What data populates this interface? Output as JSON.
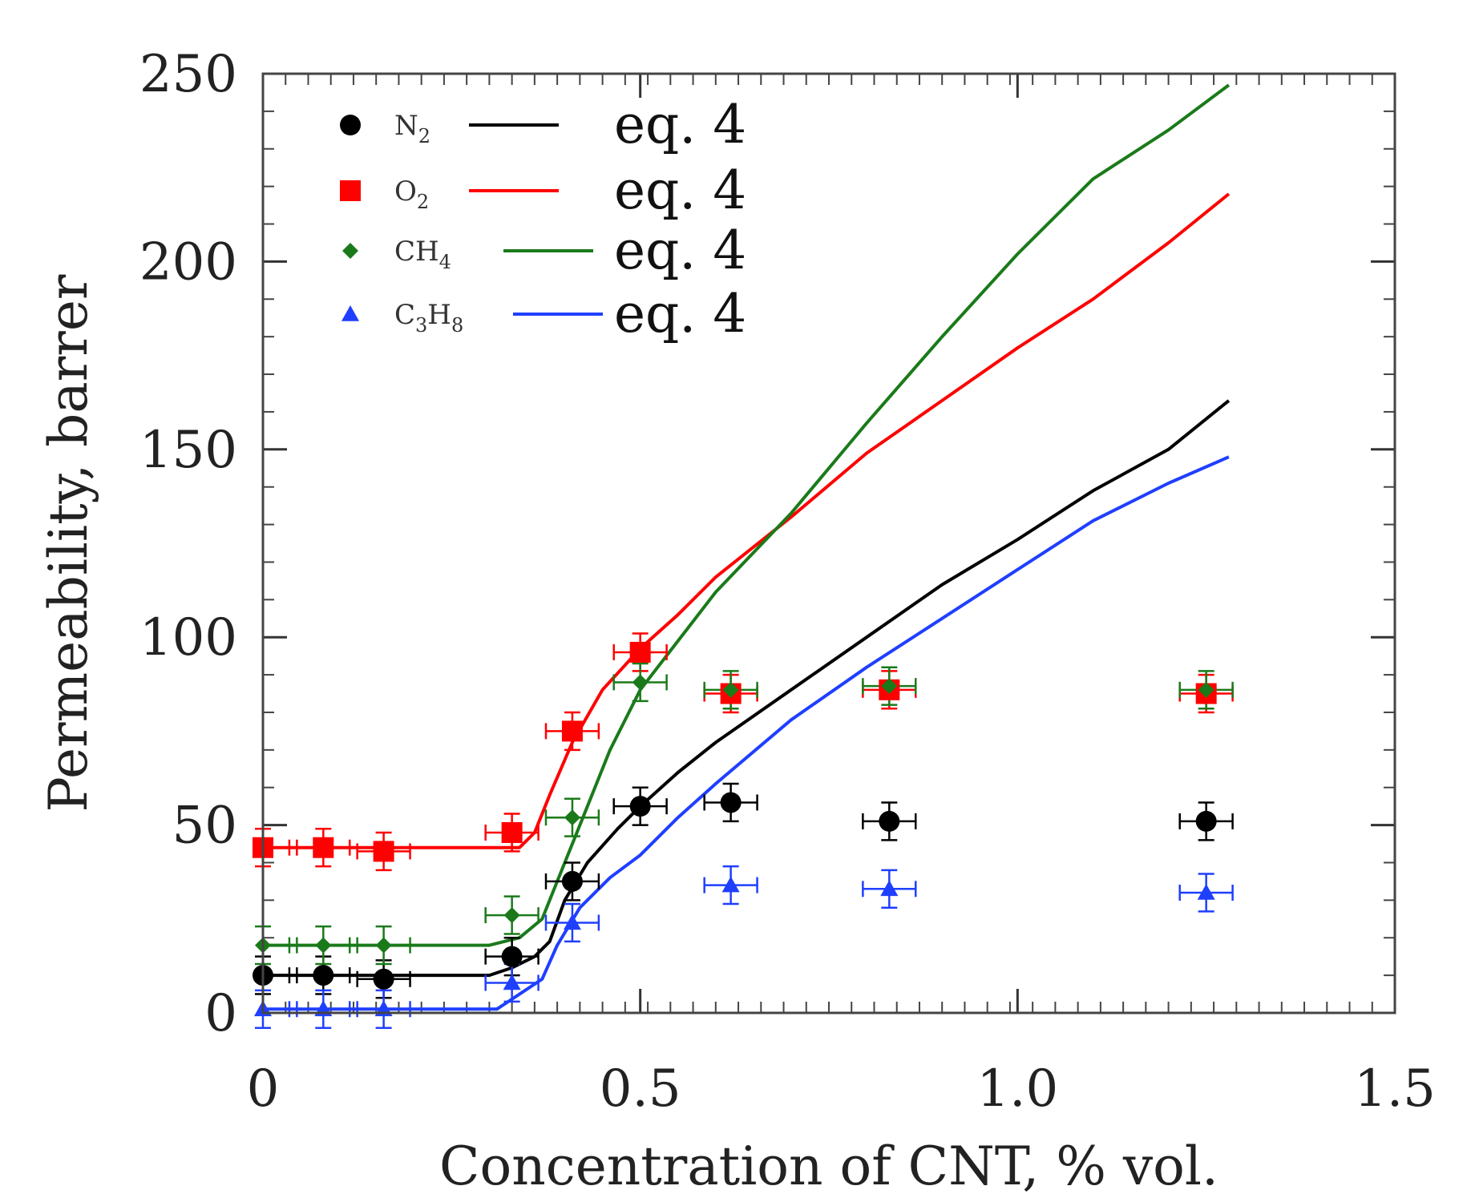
{
  "chart_data": {
    "type": "scatter",
    "title": "",
    "xlabel": "Concentration of CNT, % vol.",
    "ylabel": "Permeability, barrer",
    "xlim": [
      0,
      1.5
    ],
    "ylim": [
      0,
      250
    ],
    "xticks": [
      0,
      0.5,
      1.0,
      1.5
    ],
    "xtick_labels": [
      "0",
      "0.5",
      "1.0",
      "1.5"
    ],
    "yticks": [
      0,
      50,
      100,
      150,
      200,
      250
    ],
    "ytick_labels": [
      "0",
      "50",
      "100",
      "150",
      "200",
      "250"
    ],
    "grid": false,
    "legend_position": "top-left",
    "series": [
      {
        "name": "N2",
        "label_main": "N",
        "label_sub": "2",
        "fit_label": "eq. 4",
        "color": "#000000",
        "marker": "circle",
        "points": [
          [
            0,
            10
          ],
          [
            0.08,
            10
          ],
          [
            0.16,
            9
          ],
          [
            0.33,
            15
          ],
          [
            0.41,
            35
          ],
          [
            0.5,
            55
          ],
          [
            0.62,
            56
          ],
          [
            0.83,
            51
          ],
          [
            1.25,
            51
          ]
        ],
        "x_err": 0.035,
        "y_err": 5,
        "fit": [
          [
            0,
            10
          ],
          [
            0.3,
            10
          ],
          [
            0.33,
            12
          ],
          [
            0.36,
            15
          ],
          [
            0.38,
            19
          ],
          [
            0.4,
            30
          ],
          [
            0.43,
            40
          ],
          [
            0.47,
            49
          ],
          [
            0.5,
            55
          ],
          [
            0.55,
            64
          ],
          [
            0.6,
            72
          ],
          [
            0.7,
            86
          ],
          [
            0.8,
            100
          ],
          [
            0.9,
            114
          ],
          [
            1.0,
            126
          ],
          [
            1.1,
            139
          ],
          [
            1.2,
            150
          ],
          [
            1.28,
            163
          ]
        ]
      },
      {
        "name": "O2",
        "label_main": "O",
        "label_sub": "2",
        "fit_label": "eq. 4",
        "color": "#ff0000",
        "marker": "square",
        "points": [
          [
            0,
            44
          ],
          [
            0.08,
            44
          ],
          [
            0.16,
            43
          ],
          [
            0.33,
            48
          ],
          [
            0.41,
            75
          ],
          [
            0.5,
            96
          ],
          [
            0.62,
            85
          ],
          [
            0.83,
            86
          ],
          [
            1.25,
            85
          ]
        ],
        "x_err": 0.035,
        "y_err": 5,
        "fit": [
          [
            0,
            44
          ],
          [
            0.3,
            44
          ],
          [
            0.34,
            44
          ],
          [
            0.36,
            48
          ],
          [
            0.38,
            58
          ],
          [
            0.41,
            72
          ],
          [
            0.45,
            86
          ],
          [
            0.5,
            97
          ],
          [
            0.55,
            106
          ],
          [
            0.6,
            116
          ],
          [
            0.7,
            132
          ],
          [
            0.8,
            149
          ],
          [
            0.9,
            163
          ],
          [
            1.0,
            177
          ],
          [
            1.1,
            190
          ],
          [
            1.2,
            205
          ],
          [
            1.28,
            218
          ]
        ]
      },
      {
        "name": "CH4",
        "label_main": "CH",
        "label_sub": "4",
        "fit_label": "eq. 4",
        "color": "#1a7a1a",
        "marker": "diamond",
        "points": [
          [
            0,
            18
          ],
          [
            0.08,
            18
          ],
          [
            0.16,
            18
          ],
          [
            0.33,
            26
          ],
          [
            0.41,
            52
          ],
          [
            0.5,
            88
          ],
          [
            0.62,
            86
          ],
          [
            0.83,
            87
          ],
          [
            1.25,
            86
          ]
        ],
        "x_err": 0.035,
        "y_err": 5,
        "fit": [
          [
            0,
            18
          ],
          [
            0.3,
            18
          ],
          [
            0.34,
            20
          ],
          [
            0.37,
            25
          ],
          [
            0.39,
            35
          ],
          [
            0.42,
            50
          ],
          [
            0.46,
            70
          ],
          [
            0.5,
            86
          ],
          [
            0.55,
            99
          ],
          [
            0.6,
            112
          ],
          [
            0.7,
            133
          ],
          [
            0.8,
            157
          ],
          [
            0.9,
            180
          ],
          [
            1.0,
            202
          ],
          [
            1.1,
            222
          ],
          [
            1.2,
            235
          ],
          [
            1.28,
            247
          ]
        ]
      },
      {
        "name": "C3H8",
        "label_main": "C",
        "label_sub": "3",
        "label_main2": "H",
        "label_sub2": "8",
        "fit_label": "eq. 4",
        "color": "#1f3fff",
        "marker": "triangle",
        "points": [
          [
            0,
            1
          ],
          [
            0.08,
            1
          ],
          [
            0.16,
            1
          ],
          [
            0.33,
            8
          ],
          [
            0.41,
            24
          ],
          [
            0.62,
            34
          ],
          [
            0.83,
            33
          ],
          [
            1.25,
            32
          ]
        ],
        "x_err": 0.035,
        "y_err": 5,
        "fit": [
          [
            0,
            1
          ],
          [
            0.31,
            1
          ],
          [
            0.34,
            5
          ],
          [
            0.37,
            9
          ],
          [
            0.39,
            18
          ],
          [
            0.42,
            28
          ],
          [
            0.46,
            36
          ],
          [
            0.5,
            42
          ],
          [
            0.55,
            52
          ],
          [
            0.6,
            61
          ],
          [
            0.7,
            78
          ],
          [
            0.8,
            92
          ],
          [
            0.9,
            105
          ],
          [
            1.0,
            118
          ],
          [
            1.1,
            131
          ],
          [
            1.2,
            141
          ],
          [
            1.28,
            148
          ]
        ]
      }
    ]
  }
}
